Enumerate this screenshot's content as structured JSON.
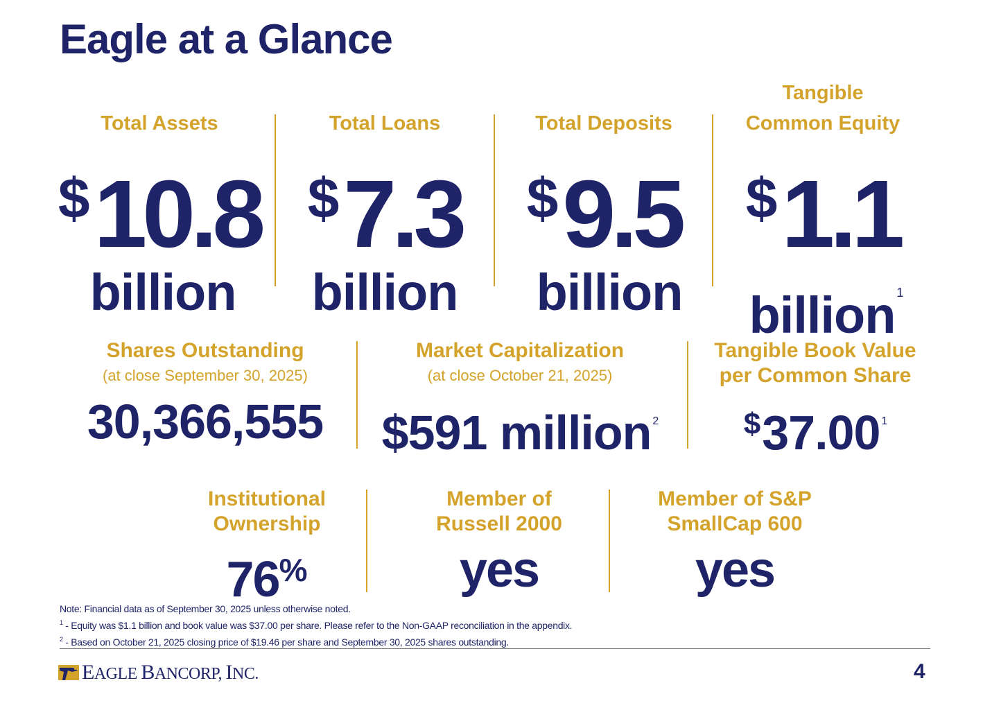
{
  "slide": {
    "title": "Eagle at a Glance",
    "page_number": "4"
  },
  "top_metrics": [
    {
      "label": "Total Assets",
      "currency": "$",
      "amount": "10.8",
      "unit": "billion",
      "footnote": ""
    },
    {
      "label": "Total Loans",
      "currency": "$",
      "amount": "7.3",
      "unit": "billion",
      "footnote": ""
    },
    {
      "label": "Total Deposits",
      "currency": "$",
      "amount": "9.5",
      "unit": "billion",
      "footnote": ""
    },
    {
      "label_line1": "Tangible",
      "label": "Common Equity",
      "currency": "$",
      "amount": "1.1",
      "unit": "billion",
      "footnote": "1"
    }
  ],
  "middle_metrics": [
    {
      "label": "Shares Outstanding",
      "sublabel": "(at close September 30, 2025)",
      "value": "30,366,555",
      "footnote": ""
    },
    {
      "label": "Market Capitalization",
      "sublabel": "(at close October 21, 2025)",
      "value": "$591 million",
      "footnote": "2"
    },
    {
      "label_line1": "Tangible Book Value",
      "label_line2": "per Common Share",
      "currency": "$",
      "value": "37.00",
      "footnote": "1"
    }
  ],
  "bottom_metrics": [
    {
      "label_line1": "Institutional",
      "label_line2": "Ownership",
      "value": "76",
      "suffix": "%"
    },
    {
      "label_line1": "Member of",
      "label_line2": "Russell 2000",
      "value": "yes"
    },
    {
      "label_line1": "Member of S&P",
      "label_line2": "SmallCap 600",
      "value": "yes"
    }
  ],
  "notes": {
    "line1": "Note: Financial data as of September 30, 2025 unless otherwise noted.",
    "line2_marker": "1",
    "line2": " - Equity was $1.1 billion and book value was $37.00 per share. Please refer to the Non-GAAP reconciliation in the appendix.",
    "line3_marker": "2",
    "line3": " - Based on October 21, 2025 closing price of $19.46 per share and September 30, 2025 shares outstanding."
  },
  "logo": {
    "text_E": "E",
    "text_agle": "AGLE ",
    "text_B": "B",
    "text_ancorp": "ANCORP, ",
    "text_I": "I",
    "text_nc": "NC."
  },
  "colors": {
    "navy": "#1f2468",
    "gold": "#d4a32b"
  }
}
